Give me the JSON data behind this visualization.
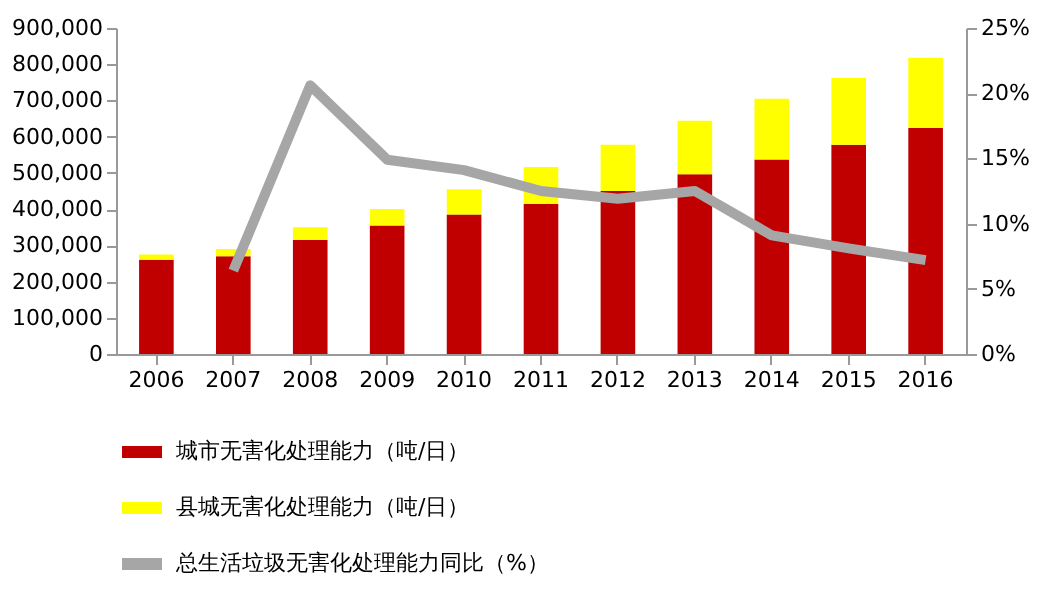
{
  "chart_data": {
    "type": "bar",
    "stacked": true,
    "categories": [
      "2006",
      "2007",
      "2008",
      "2009",
      "2010",
      "2011",
      "2012",
      "2013",
      "2014",
      "2015",
      "2016"
    ],
    "series": [
      {
        "name": "城市无害化处理能力（吨/日）",
        "color": "#c00000",
        "values": [
          260000,
          270000,
          315000,
          355000,
          385000,
          414000,
          450000,
          496000,
          537000,
          578000,
          624000
        ]
      },
      {
        "name": "县城无害化处理能力（吨/日）",
        "color": "#ffff00",
        "values": [
          15000,
          20000,
          35000,
          45000,
          70000,
          102000,
          128000,
          148000,
          168000,
          184000,
          194000
        ]
      },
      {
        "name": "总生活垃圾无害化处理能力同比（%）",
        "color": "#a6a6a6",
        "type": "line",
        "axis": "y2",
        "values": [
          null,
          6.4,
          20.6,
          14.9,
          14.1,
          12.5,
          11.9,
          12.5,
          9.1,
          8.1,
          7.2
        ]
      }
    ],
    "ylim": [
      0,
      900000
    ],
    "yticks": [
      0,
      {
        "value": 100000,
        "label": "100,000"
      },
      {
        "value": 200000,
        "label": "200,000"
      },
      {
        "value": 300000,
        "label": "300,000"
      },
      {
        "value": 400000,
        "label": "400,000"
      },
      {
        "value": 500000,
        "label": "500,000"
      },
      {
        "value": 600000,
        "label": "600,000"
      },
      {
        "value": 700000,
        "label": "700,000"
      },
      {
        "value": 800000,
        "label": "800,000"
      },
      {
        "value": 900000,
        "label": "900,000"
      }
    ],
    "y2lim": [
      0,
      25
    ],
    "y2ticks": [
      {
        "value": 0,
        "label": "0%"
      },
      {
        "value": 5,
        "label": "5%"
      },
      {
        "value": 10,
        "label": "10%"
      },
      {
        "value": 15,
        "label": "15%"
      },
      {
        "value": 20,
        "label": "20%"
      },
      {
        "value": 25,
        "label": "25%"
      }
    ],
    "grid": false,
    "legend": "bottom"
  }
}
